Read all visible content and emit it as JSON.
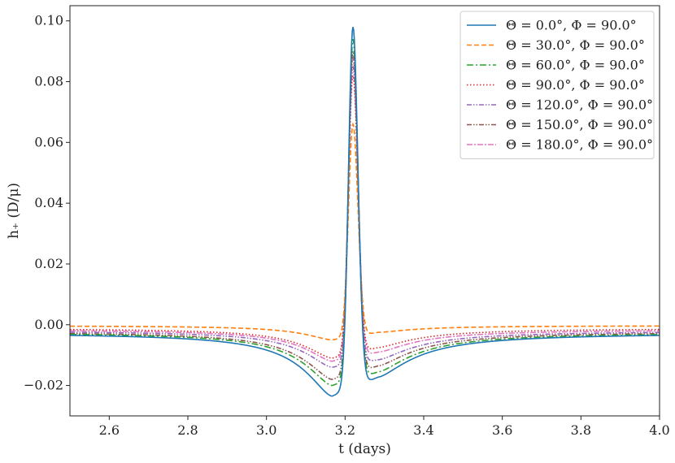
{
  "chart_data": {
    "type": "line",
    "title": "",
    "xlabel": "t (days)",
    "ylabel": "h₊ (D/μ)",
    "xlim": [
      2.5,
      4.0
    ],
    "ylim": [
      -0.03,
      0.105
    ],
    "x_ticks": [
      2.6,
      2.8,
      3.0,
      3.2,
      3.4,
      3.6,
      3.8,
      4.0
    ],
    "x_tick_labels": [
      "2.6",
      "2.8",
      "3.0",
      "3.2",
      "3.4",
      "3.6",
      "3.8",
      "4.0"
    ],
    "y_ticks": [
      -0.02,
      0.0,
      0.02,
      0.04,
      0.06,
      0.08,
      0.1
    ],
    "y_tick_labels": [
      "−0.02",
      "0.00",
      "0.02",
      "0.04",
      "0.06",
      "0.08",
      "0.10"
    ],
    "grid": false,
    "legend_position": "top-right",
    "model": {
      "peak_time": 3.22,
      "trough_time": 3.167,
      "post_trough_time": 3.285
    },
    "series": [
      {
        "name": "Θ = 0.0°,  Φ = 90.0°",
        "color": "#1f77b4",
        "dash": "solid",
        "peak": 0.098,
        "trough": -0.0235,
        "post_trough": -0.0172,
        "baseline_left": -0.0027,
        "baseline_right": -0.0027
      },
      {
        "name": "Θ = 30.0°,  Φ = 90.0°",
        "color": "#ff7f0e",
        "dash": "dashed",
        "peak": 0.066,
        "trough": -0.005,
        "post_trough": -0.0025,
        "baseline_left": -0.0003,
        "baseline_right": -0.0003
      },
      {
        "name": "Θ = 60.0°,  Φ = 90.0°",
        "color": "#2ca02c",
        "dash": "dashdot",
        "peak": 0.094,
        "trough": -0.02,
        "post_trough": -0.0155,
        "baseline_left": -0.0025,
        "baseline_right": -0.0025
      },
      {
        "name": "Θ = 90.0°,  Φ = 90.0°",
        "color": "#d62728",
        "dash": "dotted",
        "peak": 0.082,
        "trough": -0.011,
        "post_trough": -0.0075,
        "baseline_left": -0.0012,
        "baseline_right": -0.0012
      },
      {
        "name": "Θ = 120.0°,  Φ = 90.0°",
        "color": "#9467bd",
        "dash": "dashdotdot",
        "peak": 0.085,
        "trough": -0.014,
        "post_trough": -0.0115,
        "baseline_left": -0.002,
        "baseline_right": -0.002
      },
      {
        "name": "Θ = 150.0°,  Φ = 90.0°",
        "color": "#8c564b",
        "dash": "dashdotdot",
        "peak": 0.09,
        "trough": -0.018,
        "post_trough": -0.0135,
        "baseline_left": -0.0023,
        "baseline_right": -0.0023
      },
      {
        "name": "Θ = 180.0°,  Φ = 90.0°",
        "color": "#e377c2",
        "dash": "dashdot2",
        "peak": 0.088,
        "trough": -0.012,
        "post_trough": -0.009,
        "baseline_left": -0.0016,
        "baseline_right": -0.0016
      }
    ]
  }
}
